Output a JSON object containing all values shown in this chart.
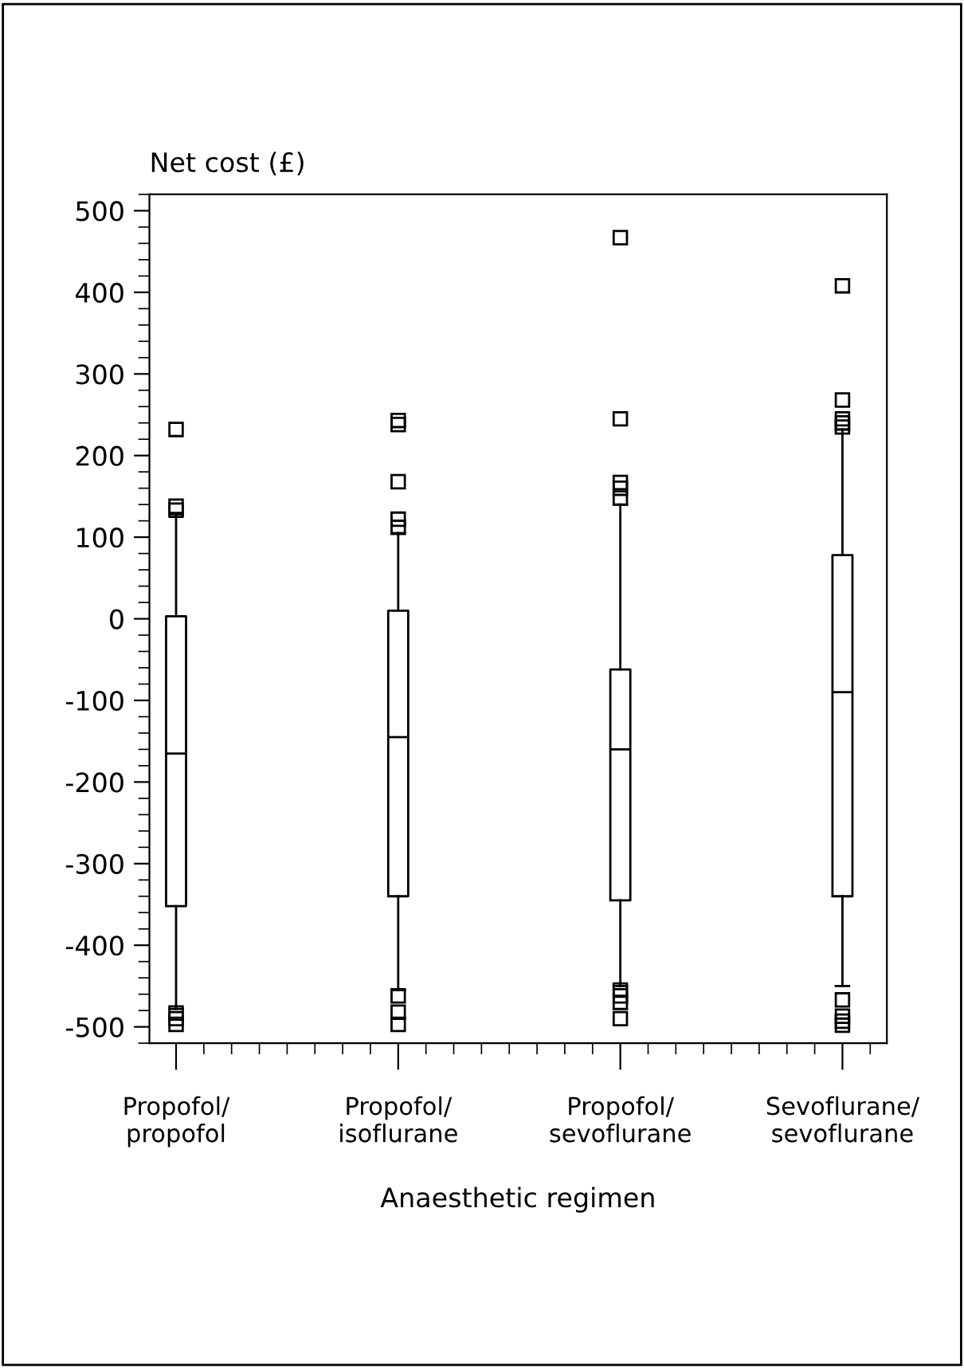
{
  "chart_data": {
    "type": "box",
    "ylabel": "Net cost (£)",
    "xlabel": "Anaesthetic regimen",
    "categories": [
      "Propofol/\npropofol",
      "Propofol/\nisoflurane",
      "Propofol/\nsevoflurane",
      "Sevoflurane/\nsevoflurane"
    ],
    "boxes": [
      {
        "low": -478,
        "q1": -352,
        "median": -165,
        "q3": 3,
        "high": 128,
        "outliers": [
          133,
          138,
          232,
          -483,
          -490,
          -497
        ]
      },
      {
        "low": -455,
        "q1": -340,
        "median": -145,
        "q3": 10,
        "high": 105,
        "outliers": [
          243,
          238,
          168,
          122,
          112,
          -462,
          -482,
          -497
        ]
      },
      {
        "low": -450,
        "q1": -345,
        "median": -160,
        "q3": -62,
        "high": 140,
        "outliers": [
          467,
          245,
          167,
          160,
          148,
          -455,
          -462,
          -470,
          -490
        ]
      },
      {
        "low": -450,
        "q1": -340,
        "median": -90,
        "q3": 78,
        "high": 232,
        "outliers": [
          408,
          268,
          245,
          240,
          235,
          -467,
          -487,
          -493,
          -498
        ]
      }
    ],
    "ylim": [
      -520,
      520
    ],
    "yticks": [
      -500,
      -400,
      -300,
      -200,
      -100,
      0,
      100,
      200,
      300,
      400,
      500
    ],
    "marker": "square",
    "grid": false,
    "color": "#000000"
  }
}
